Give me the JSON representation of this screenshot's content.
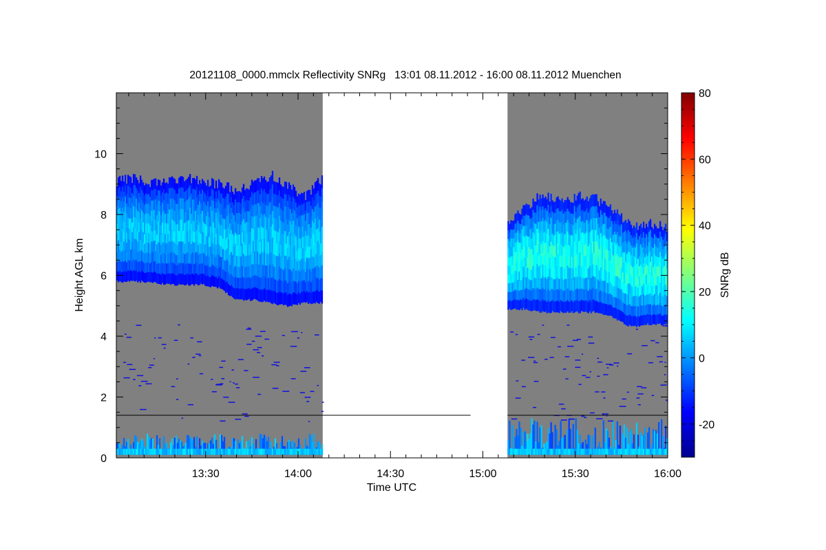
{
  "chart_data": {
    "type": "heatmap",
    "title": "20121108_0000.mmclx Reflectivity SNRg   13:01 08.11.2012 - 16:00 08.11.2012 Muenchen",
    "xlabel": "Time UTC",
    "ylabel": "Height AGL km",
    "colorbar_label": "SNRg dB",
    "x_range": [
      "13:01",
      "16:00"
    ],
    "x_ticks": [
      "13:30",
      "14:00",
      "14:30",
      "15:00",
      "15:30",
      "16:00"
    ],
    "y_range": [
      0,
      12
    ],
    "y_ticks": [
      0,
      2,
      4,
      6,
      8,
      10
    ],
    "colorbar_range": [
      -30,
      80
    ],
    "colorbar_ticks": [
      -20,
      0,
      20,
      40,
      60,
      80
    ],
    "colormap": "jet",
    "background_no_signal": "#808080",
    "data_gap": {
      "start": "14:08",
      "end": "15:08"
    },
    "reference_line_height_km": 1.4,
    "segments": [
      {
        "name": "segment-1",
        "time_start": "13:01",
        "time_end": "14:08",
        "cloud_top_km": [
          9.1,
          9.2,
          9.0,
          9.1,
          9.2,
          9.1,
          9.0,
          8.8,
          9.0,
          9.3,
          8.9,
          8.6,
          9.2
        ],
        "cloud_base_km": [
          5.8,
          5.8,
          5.8,
          5.7,
          5.7,
          5.7,
          5.6,
          5.2,
          5.2,
          5.1,
          5.0,
          5.1,
          5.1
        ],
        "max_snr_db": 12,
        "low_level_return_top_km": 0.8
      },
      {
        "name": "segment-2",
        "time_start": "15:08",
        "time_end": "16:00",
        "cloud_top_km": [
          7.8,
          8.2,
          8.7,
          8.4,
          8.6,
          8.5,
          8.1,
          7.6,
          7.7,
          7.6
        ],
        "cloud_base_km": [
          4.9,
          4.9,
          4.8,
          4.8,
          4.8,
          4.8,
          4.6,
          4.3,
          4.4,
          4.4
        ],
        "max_snr_db": 22,
        "low_level_return_top_km": 1.3
      }
    ]
  }
}
